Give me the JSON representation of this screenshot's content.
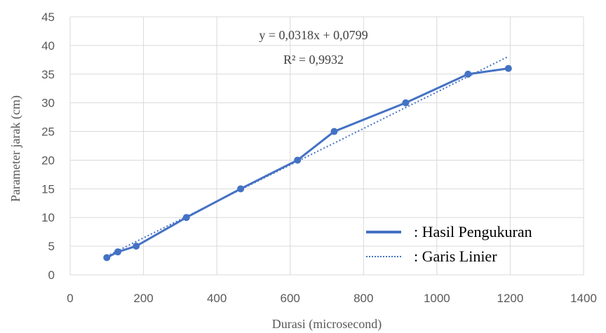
{
  "chart_data": {
    "type": "line",
    "title": "",
    "xlabel": "Durasi (microsecond)",
    "ylabel": "Parameter jarak (cm)",
    "xlim": [
      0,
      1400
    ],
    "ylim": [
      0,
      45
    ],
    "x_ticks": [
      0,
      200,
      400,
      600,
      800,
      1000,
      1200,
      1400
    ],
    "y_ticks": [
      0,
      5,
      10,
      15,
      20,
      25,
      30,
      35,
      40,
      45
    ],
    "x_tick_labels": [
      "0",
      "200",
      "400",
      "600",
      "800",
      "1000",
      "1200",
      "1400"
    ],
    "y_tick_labels": [
      "0",
      "5",
      "10",
      "15",
      "20",
      "25",
      "30",
      "35",
      "40",
      "45"
    ],
    "grid": "vertical and horizontal",
    "series": [
      {
        "name": ": Hasil Pengukuran",
        "style": "solid",
        "markers": true,
        "color": "#4472C4",
        "x": [
          100,
          130,
          180,
          317,
          465,
          620,
          720,
          915,
          1085,
          1195
        ],
        "y": [
          3,
          4,
          5,
          10,
          15,
          20,
          25,
          30,
          35,
          36
        ]
      },
      {
        "name": ": Garis Linier",
        "style": "dotted",
        "markers": false,
        "color": "#4472C4",
        "x": [
          100,
          1195
        ],
        "y": [
          3.26,
          38.08
        ]
      }
    ],
    "annotations": [
      "y = 0,0318x + 0,0799",
      "R² = 0,9932"
    ],
    "legend_position": "bottom-right"
  },
  "colors": {
    "series": "#4472C4",
    "grid": "#d9d9d9",
    "axis_text": "#595959"
  }
}
